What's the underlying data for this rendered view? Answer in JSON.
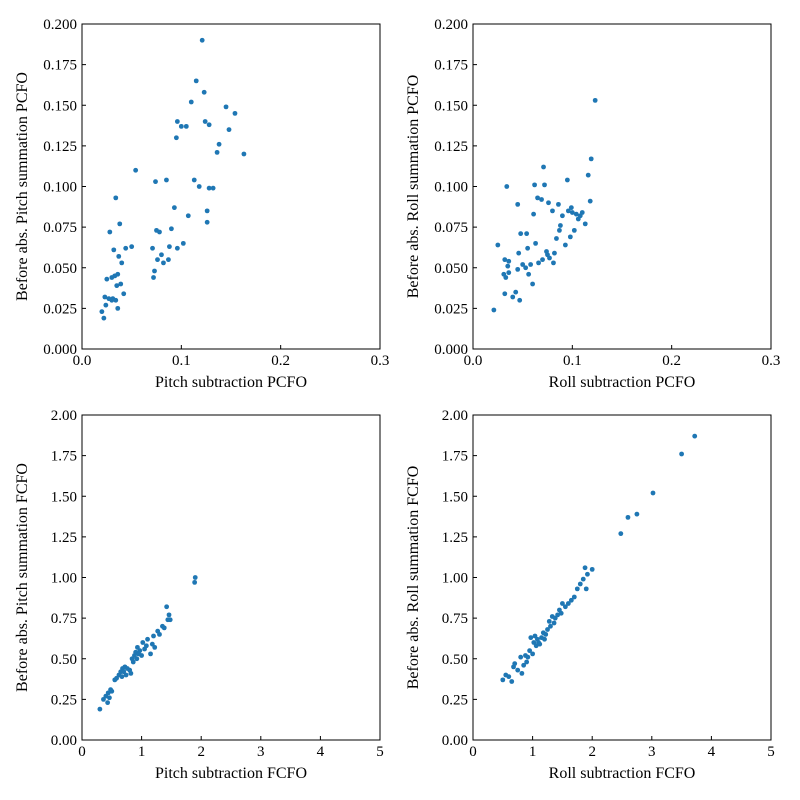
{
  "chart_data": [
    {
      "type": "scatter",
      "xlabel": "Pitch subtraction PCFO",
      "ylabel": "Before abs. Pitch summation PCFO",
      "xlim": [
        0,
        0.3
      ],
      "ylim": [
        0,
        0.2
      ],
      "xticks": [
        "0.0",
        "0.1",
        "0.2",
        "0.3"
      ],
      "yticks": [
        "0.000",
        "0.025",
        "0.050",
        "0.075",
        "0.100",
        "0.125",
        "0.150",
        "0.175",
        "0.200"
      ],
      "color": "#1f77b4",
      "points": [
        [
          0.02,
          0.023
        ],
        [
          0.022,
          0.019
        ],
        [
          0.023,
          0.032
        ],
        [
          0.024,
          0.027
        ],
        [
          0.025,
          0.043
        ],
        [
          0.027,
          0.031
        ],
        [
          0.028,
          0.072
        ],
        [
          0.03,
          0.03
        ],
        [
          0.03,
          0.044
        ],
        [
          0.031,
          0.031
        ],
        [
          0.032,
          0.061
        ],
        [
          0.033,
          0.045
        ],
        [
          0.034,
          0.093
        ],
        [
          0.034,
          0.03
        ],
        [
          0.035,
          0.039
        ],
        [
          0.036,
          0.046
        ],
        [
          0.036,
          0.025
        ],
        [
          0.037,
          0.057
        ],
        [
          0.038,
          0.077
        ],
        [
          0.039,
          0.04
        ],
        [
          0.04,
          0.053
        ],
        [
          0.042,
          0.034
        ],
        [
          0.044,
          0.062
        ],
        [
          0.05,
          0.063
        ],
        [
          0.054,
          0.11
        ],
        [
          0.071,
          0.062
        ],
        [
          0.072,
          0.044
        ],
        [
          0.073,
          0.048
        ],
        [
          0.074,
          0.103
        ],
        [
          0.075,
          0.073
        ],
        [
          0.076,
          0.055
        ],
        [
          0.078,
          0.072
        ],
        [
          0.08,
          0.058
        ],
        [
          0.082,
          0.053
        ],
        [
          0.085,
          0.104
        ],
        [
          0.087,
          0.055
        ],
        [
          0.088,
          0.063
        ],
        [
          0.09,
          0.074
        ],
        [
          0.093,
          0.087
        ],
        [
          0.095,
          0.13
        ],
        [
          0.096,
          0.14
        ],
        [
          0.096,
          0.062
        ],
        [
          0.1,
          0.137
        ],
        [
          0.102,
          0.065
        ],
        [
          0.105,
          0.137
        ],
        [
          0.107,
          0.082
        ],
        [
          0.11,
          0.152
        ],
        [
          0.113,
          0.104
        ],
        [
          0.115,
          0.165
        ],
        [
          0.118,
          0.1
        ],
        [
          0.121,
          0.19
        ],
        [
          0.123,
          0.158
        ],
        [
          0.124,
          0.14
        ],
        [
          0.126,
          0.085
        ],
        [
          0.126,
          0.078
        ],
        [
          0.128,
          0.138
        ],
        [
          0.128,
          0.099
        ],
        [
          0.132,
          0.099
        ],
        [
          0.136,
          0.121
        ],
        [
          0.138,
          0.126
        ],
        [
          0.145,
          0.149
        ],
        [
          0.148,
          0.135
        ],
        [
          0.154,
          0.145
        ],
        [
          0.163,
          0.12
        ]
      ]
    },
    {
      "type": "scatter",
      "xlabel": "Roll subtraction PCFO",
      "ylabel": "Before abs. Roll summation PCFO",
      "xlim": [
        0,
        0.3
      ],
      "ylim": [
        0,
        0.2
      ],
      "xticks": [
        "0.0",
        "0.1",
        "0.2",
        "0.3"
      ],
      "yticks": [
        "0.000",
        "0.025",
        "0.050",
        "0.075",
        "0.100",
        "0.125",
        "0.150",
        "0.175",
        "0.200"
      ],
      "color": "#1f77b4",
      "points": [
        [
          0.021,
          0.024
        ],
        [
          0.025,
          0.064
        ],
        [
          0.031,
          0.046
        ],
        [
          0.032,
          0.034
        ],
        [
          0.032,
          0.055
        ],
        [
          0.033,
          0.044
        ],
        [
          0.034,
          0.1
        ],
        [
          0.035,
          0.051
        ],
        [
          0.036,
          0.047
        ],
        [
          0.036,
          0.054
        ],
        [
          0.04,
          0.032
        ],
        [
          0.043,
          0.035
        ],
        [
          0.045,
          0.049
        ],
        [
          0.045,
          0.089
        ],
        [
          0.046,
          0.059
        ],
        [
          0.047,
          0.03
        ],
        [
          0.048,
          0.071
        ],
        [
          0.05,
          0.052
        ],
        [
          0.053,
          0.05
        ],
        [
          0.054,
          0.071
        ],
        [
          0.055,
          0.062
        ],
        [
          0.056,
          0.046
        ],
        [
          0.058,
          0.052
        ],
        [
          0.06,
          0.04
        ],
        [
          0.061,
          0.083
        ],
        [
          0.062,
          0.101
        ],
        [
          0.063,
          0.065
        ],
        [
          0.065,
          0.093
        ],
        [
          0.066,
          0.053
        ],
        [
          0.069,
          0.092
        ],
        [
          0.07,
          0.055
        ],
        [
          0.071,
          0.112
        ],
        [
          0.072,
          0.101
        ],
        [
          0.074,
          0.06
        ],
        [
          0.075,
          0.058
        ],
        [
          0.076,
          0.09
        ],
        [
          0.077,
          0.056
        ],
        [
          0.08,
          0.085
        ],
        [
          0.081,
          0.053
        ],
        [
          0.082,
          0.059
        ],
        [
          0.084,
          0.068
        ],
        [
          0.086,
          0.089
        ],
        [
          0.087,
          0.073
        ],
        [
          0.088,
          0.076
        ],
        [
          0.09,
          0.082
        ],
        [
          0.093,
          0.064
        ],
        [
          0.095,
          0.104
        ],
        [
          0.096,
          0.085
        ],
        [
          0.098,
          0.069
        ],
        [
          0.099,
          0.087
        ],
        [
          0.1,
          0.084
        ],
        [
          0.102,
          0.073
        ],
        [
          0.104,
          0.083
        ],
        [
          0.106,
          0.08
        ],
        [
          0.108,
          0.082
        ],
        [
          0.11,
          0.084
        ],
        [
          0.113,
          0.077
        ],
        [
          0.116,
          0.107
        ],
        [
          0.118,
          0.091
        ],
        [
          0.119,
          0.117
        ],
        [
          0.123,
          0.153
        ]
      ]
    },
    {
      "type": "scatter",
      "xlabel": "Pitch subtraction FCFO",
      "ylabel": "Before abs. Pitch summation FCFO",
      "xlim": [
        0,
        5
      ],
      "ylim": [
        0,
        2
      ],
      "xticks": [
        "0",
        "1",
        "2",
        "3",
        "4",
        "5"
      ],
      "yticks": [
        "0.00",
        "0.25",
        "0.50",
        "0.75",
        "1.00",
        "1.25",
        "1.50",
        "1.75",
        "2.00"
      ],
      "color": "#1f77b4",
      "points": [
        [
          0.3,
          0.19
        ],
        [
          0.36,
          0.25
        ],
        [
          0.4,
          0.27
        ],
        [
          0.43,
          0.23
        ],
        [
          0.44,
          0.29
        ],
        [
          0.46,
          0.26
        ],
        [
          0.48,
          0.31
        ],
        [
          0.5,
          0.3
        ],
        [
          0.55,
          0.37
        ],
        [
          0.58,
          0.38
        ],
        [
          0.62,
          0.4
        ],
        [
          0.65,
          0.42
        ],
        [
          0.67,
          0.39
        ],
        [
          0.68,
          0.44
        ],
        [
          0.7,
          0.42
        ],
        [
          0.72,
          0.45
        ],
        [
          0.74,
          0.4
        ],
        [
          0.76,
          0.44
        ],
        [
          0.8,
          0.43
        ],
        [
          0.82,
          0.41
        ],
        [
          0.84,
          0.5
        ],
        [
          0.86,
          0.48
        ],
        [
          0.88,
          0.52
        ],
        [
          0.9,
          0.54
        ],
        [
          0.92,
          0.5
        ],
        [
          0.93,
          0.57
        ],
        [
          0.95,
          0.53
        ],
        [
          0.97,
          0.55
        ],
        [
          1.0,
          0.52
        ],
        [
          1.02,
          0.6
        ],
        [
          1.05,
          0.56
        ],
        [
          1.08,
          0.58
        ],
        [
          1.1,
          0.62
        ],
        [
          1.15,
          0.53
        ],
        [
          1.18,
          0.59
        ],
        [
          1.2,
          0.64
        ],
        [
          1.22,
          0.57
        ],
        [
          1.27,
          0.67
        ],
        [
          1.3,
          0.65
        ],
        [
          1.35,
          0.7
        ],
        [
          1.38,
          0.69
        ],
        [
          1.42,
          0.82
        ],
        [
          1.44,
          0.74
        ],
        [
          1.46,
          0.77
        ],
        [
          1.48,
          0.74
        ],
        [
          1.89,
          0.97
        ],
        [
          1.9,
          1.0
        ]
      ]
    },
    {
      "type": "scatter",
      "xlabel": "Roll subtraction FCFO",
      "ylabel": "Before abs. Roll summation FCFO",
      "xlim": [
        0,
        5
      ],
      "ylim": [
        0,
        2
      ],
      "xticks": [
        "0",
        "1",
        "2",
        "3",
        "4",
        "5"
      ],
      "yticks": [
        "0.00",
        "0.25",
        "0.50",
        "0.75",
        "1.00",
        "1.25",
        "1.50",
        "1.75",
        "2.00"
      ],
      "color": "#1f77b4",
      "points": [
        [
          0.5,
          0.37
        ],
        [
          0.55,
          0.4
        ],
        [
          0.6,
          0.39
        ],
        [
          0.65,
          0.36
        ],
        [
          0.68,
          0.45
        ],
        [
          0.7,
          0.47
        ],
        [
          0.75,
          0.43
        ],
        [
          0.8,
          0.51
        ],
        [
          0.82,
          0.41
        ],
        [
          0.85,
          0.46
        ],
        [
          0.88,
          0.52
        ],
        [
          0.9,
          0.48
        ],
        [
          0.92,
          0.51
        ],
        [
          0.95,
          0.55
        ],
        [
          0.97,
          0.63
        ],
        [
          1.0,
          0.53
        ],
        [
          1.02,
          0.6
        ],
        [
          1.04,
          0.64
        ],
        [
          1.06,
          0.58
        ],
        [
          1.08,
          0.62
        ],
        [
          1.1,
          0.6
        ],
        [
          1.12,
          0.59
        ],
        [
          1.15,
          0.63
        ],
        [
          1.18,
          0.66
        ],
        [
          1.2,
          0.62
        ],
        [
          1.22,
          0.65
        ],
        [
          1.25,
          0.68
        ],
        [
          1.28,
          0.73
        ],
        [
          1.3,
          0.7
        ],
        [
          1.33,
          0.76
        ],
        [
          1.36,
          0.72
        ],
        [
          1.38,
          0.75
        ],
        [
          1.42,
          0.77
        ],
        [
          1.45,
          0.8
        ],
        [
          1.48,
          0.78
        ],
        [
          1.5,
          0.84
        ],
        [
          1.55,
          0.82
        ],
        [
          1.6,
          0.84
        ],
        [
          1.65,
          0.86
        ],
        [
          1.7,
          0.88
        ],
        [
          1.75,
          0.93
        ],
        [
          1.8,
          0.96
        ],
        [
          1.85,
          0.99
        ],
        [
          1.88,
          1.06
        ],
        [
          1.9,
          0.93
        ],
        [
          1.92,
          1.02
        ],
        [
          2.0,
          1.05
        ],
        [
          2.48,
          1.27
        ],
        [
          2.6,
          1.37
        ],
        [
          2.75,
          1.39
        ],
        [
          3.02,
          1.52
        ],
        [
          3.5,
          1.76
        ],
        [
          3.72,
          1.87
        ]
      ]
    }
  ]
}
